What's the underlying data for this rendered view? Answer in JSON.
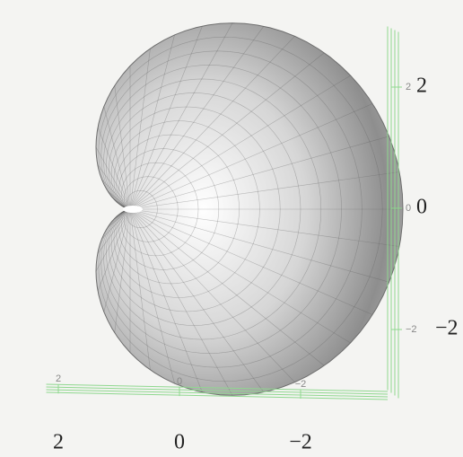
{
  "chart_data": {
    "type": "surface",
    "xlim": [
      2.2,
      -3.3
    ],
    "xticks": [
      2,
      0,
      {
        "value": -2,
        "label": "−2"
      }
    ],
    "ylim": [
      -3,
      3
    ],
    "yticks": [
      2,
      0,
      {
        "value": -2,
        "label": "−2"
      }
    ],
    "color": "#9a9a9a",
    "axis_color": "#8fd88f"
  }
}
